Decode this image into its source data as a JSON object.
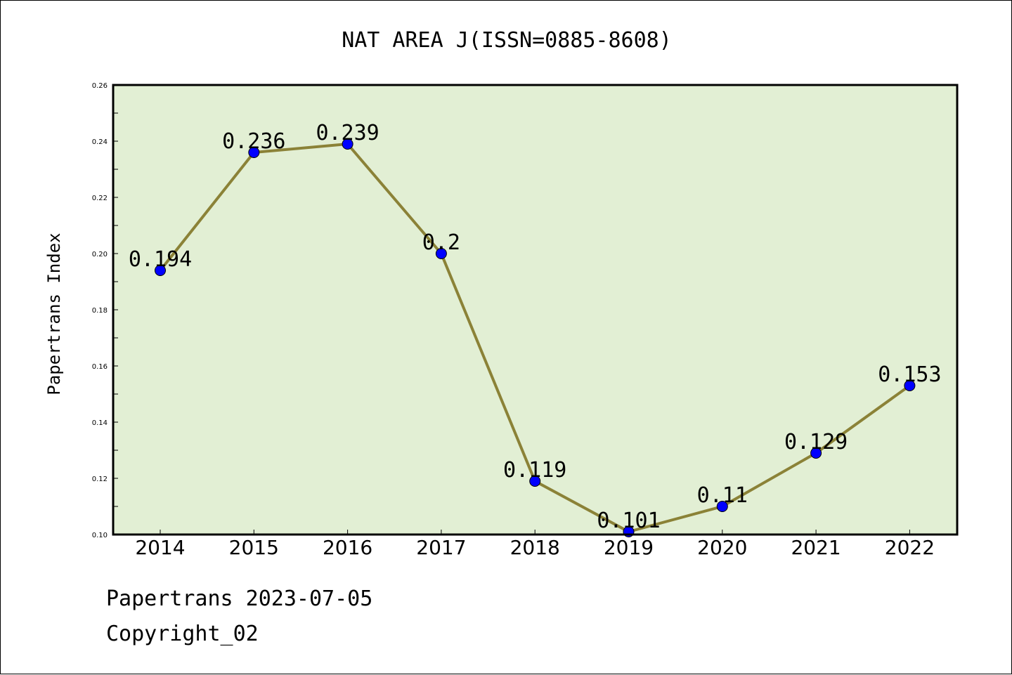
{
  "chart_data": {
    "type": "line",
    "title": "NAT AREA J(ISSN=0885-8608)",
    "xlabel": "",
    "ylabel": "Papertrans Index",
    "categories": [
      "2014",
      "2015",
      "2016",
      "2017",
      "2018",
      "2019",
      "2020",
      "2021",
      "2022"
    ],
    "series": [
      {
        "values": [
          0.194,
          0.236,
          0.239,
          0.2,
          0.119,
          0.101,
          0.11,
          0.129,
          0.153
        ],
        "data_labels": [
          "0.194",
          "0.236",
          "0.239",
          "0.2",
          "0.119",
          "0.101",
          "0.11",
          "0.129",
          "0.153"
        ],
        "line_color": "#8b8237",
        "marker_color": "#0000ff"
      }
    ],
    "ylim": [
      0.1,
      0.26
    ],
    "yticks": [
      "0.10",
      "0.12",
      "0.14",
      "0.16",
      "0.18",
      "0.20",
      "0.22",
      "0.24",
      "0.26"
    ],
    "plot_background": "#e2efd4",
    "grid": false,
    "legend": "none"
  },
  "footer": {
    "line1": "Papertrans 2023-07-05",
    "line2": "Copyright_02"
  }
}
